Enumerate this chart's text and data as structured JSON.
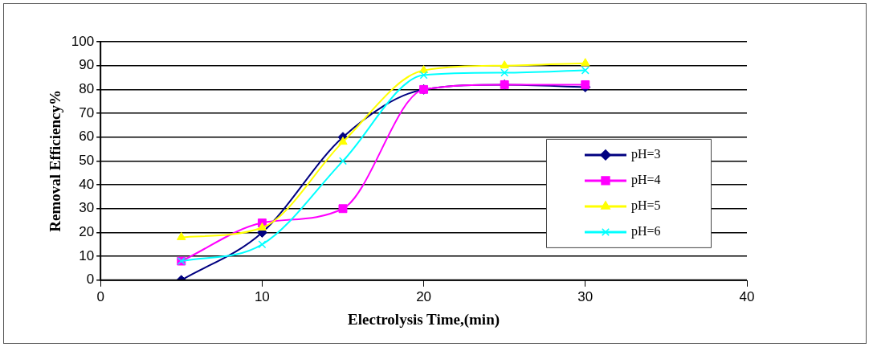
{
  "chart_data": {
    "type": "line",
    "xlabel": "Electrolysis Time,(min)",
    "ylabel": "Removal Efficiency%",
    "x": [
      5,
      10,
      15,
      20,
      25,
      30
    ],
    "series": [
      {
        "name": "pH=3",
        "color": "#000080",
        "marker": "diamond",
        "values": [
          0,
          20,
          60,
          80,
          82,
          81
        ]
      },
      {
        "name": "pH=4",
        "color": "#ff00ff",
        "marker": "square",
        "values": [
          8,
          24,
          30,
          80,
          82,
          82
        ]
      },
      {
        "name": "pH=5",
        "color": "#ffff00",
        "marker": "triangle",
        "values": [
          18,
          22,
          58,
          88,
          90,
          91
        ]
      },
      {
        "name": "pH=6",
        "color": "#00ffff",
        "marker": "cross",
        "values": [
          8,
          15,
          50,
          86,
          87,
          88
        ]
      }
    ],
    "xlim": [
      0,
      40
    ],
    "xticks": [
      0,
      10,
      20,
      30,
      40
    ],
    "ylim": [
      0,
      100
    ],
    "yticks": [
      0,
      10,
      20,
      30,
      40,
      50,
      60,
      70,
      80,
      90,
      100
    ],
    "grid": "y",
    "legend": "right",
    "line_style": "solid"
  }
}
